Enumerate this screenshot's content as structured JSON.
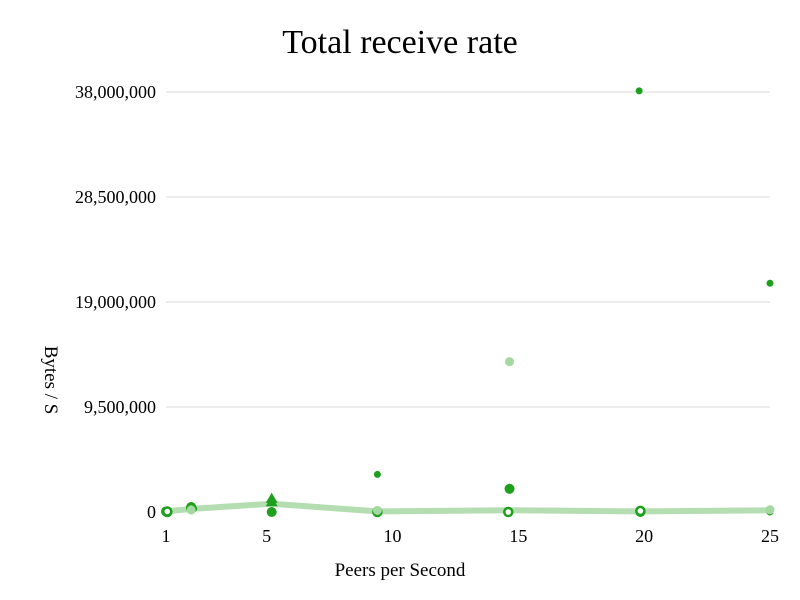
{
  "chart_data": {
    "type": "scatter",
    "title": "Total receive rate",
    "xlabel": "Peers per Second",
    "ylabel": "Bytes / S",
    "xlim": [
      1,
      25
    ],
    "ylim": [
      0,
      38000000
    ],
    "x_ticks": [
      1,
      5,
      10,
      15,
      20,
      25
    ],
    "y_ticks": [
      0,
      9500000,
      19000000,
      28500000,
      38000000
    ],
    "x_tick_labels": [
      "1",
      "5",
      "10",
      "15",
      "20",
      "25"
    ],
    "y_tick_labels": [
      "0",
      "9,500,000",
      "19,000,000",
      "28,500,000",
      "38,000,000"
    ],
    "grid": true,
    "legend": "none",
    "colors": {
      "gridline": "#d9d9d9",
      "dark_green": "#1ea01e",
      "light_green": "#a3d9a0",
      "trend_line": "#b5ddb2"
    },
    "series": [
      {
        "style": "dark-small",
        "marker": "circle",
        "color": "#1ea01e",
        "points": [
          {
            "x": 1.0,
            "y": 100000
          },
          {
            "x": 1.05,
            "y": 130000
          },
          {
            "x": 2.05,
            "y": 250000
          },
          {
            "x": 2.1,
            "y": 300000
          },
          {
            "x": 5.2,
            "y": 1000000
          },
          {
            "x": 9.4,
            "y": 3400000
          },
          {
            "x": 14.65,
            "y": 2100000
          },
          {
            "x": 19.8,
            "y": 38100000
          },
          {
            "x": 19.85,
            "y": 50000
          },
          {
            "x": 25.0,
            "y": 20700000
          },
          {
            "x": 25.0,
            "y": 0
          }
        ]
      },
      {
        "style": "dark-large",
        "marker": "circle",
        "color": "#1ea01e",
        "points": [
          {
            "x": 1.0,
            "y": 50000
          },
          {
            "x": 2.0,
            "y": 450000
          },
          {
            "x": 5.2,
            "y": 0
          },
          {
            "x": 14.65,
            "y": 2100000
          },
          {
            "x": 19.85,
            "y": 0
          }
        ]
      },
      {
        "style": "dark-hollow",
        "marker": "ring",
        "color": "#1ea01e",
        "points": [
          {
            "x": 1.05,
            "y": 0
          },
          {
            "x": 1.05,
            "y": 50000
          },
          {
            "x": 2.0,
            "y": 350000
          },
          {
            "x": 9.4,
            "y": 0
          },
          {
            "x": 14.6,
            "y": 0
          },
          {
            "x": 19.85,
            "y": 100000
          }
        ]
      },
      {
        "style": "dark-triangle",
        "marker": "triangle",
        "color": "#1ea01e",
        "points": [
          {
            "x": 5.2,
            "y": 1200000
          },
          {
            "x": 5.2,
            "y": 900000
          }
        ]
      },
      {
        "style": "light",
        "marker": "circle",
        "color": "#a3d9a0",
        "points": [
          {
            "x": 2.0,
            "y": 180000
          },
          {
            "x": 9.4,
            "y": 150000
          },
          {
            "x": 14.65,
            "y": 13600000
          },
          {
            "x": 25.0,
            "y": 200000
          }
        ]
      },
      {
        "style": "trend",
        "marker": "line",
        "color": "#b5ddb2",
        "points": [
          {
            "x": 1.0,
            "y": 50000
          },
          {
            "x": 2.1,
            "y": 300000
          },
          {
            "x": 5.2,
            "y": 750000
          },
          {
            "x": 9.4,
            "y": 50000
          },
          {
            "x": 14.65,
            "y": 150000
          },
          {
            "x": 19.85,
            "y": 50000
          },
          {
            "x": 25.0,
            "y": 150000
          }
        ]
      }
    ]
  }
}
